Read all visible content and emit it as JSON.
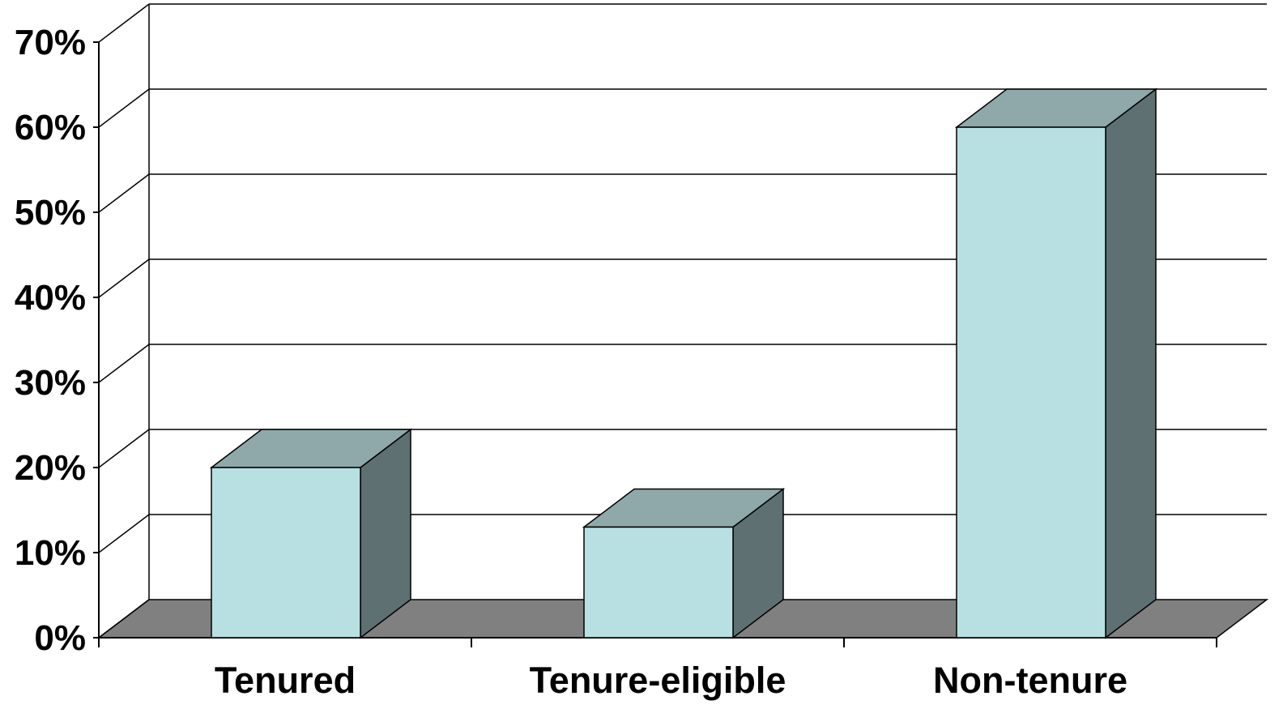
{
  "chart_data": {
    "type": "bar",
    "title": "",
    "xlabel": "",
    "ylabel": "",
    "categories": [
      "Tenured",
      "Tenure-eligible",
      "Non-tenure"
    ],
    "values": [
      0.2,
      0.13,
      0.6
    ],
    "ylim": [
      0,
      0.7
    ],
    "yticks": [
      0,
      0.1,
      0.2,
      0.3,
      0.4,
      0.5,
      0.6,
      0.7
    ],
    "ytick_labels": [
      "0%",
      "10%",
      "20%",
      "30%",
      "40%",
      "50%",
      "60%",
      "70%"
    ],
    "grid": true,
    "legend": "none",
    "style": "3d",
    "colors": {
      "bar_front": "#b8e0e3",
      "bar_top": "#8fa8aa",
      "bar_side": "#5e7071",
      "floor": "#808080",
      "grid": "#000000"
    }
  }
}
